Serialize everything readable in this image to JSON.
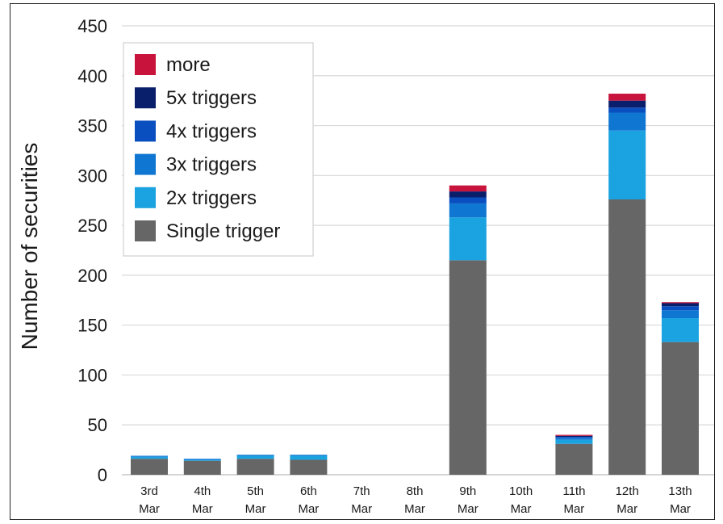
{
  "chart_data": {
    "type": "bar",
    "stacked": true,
    "title": "",
    "xlabel": "",
    "ylabel": "Number of securities",
    "ylim": [
      0,
      450
    ],
    "yticks": [
      0,
      50,
      100,
      150,
      200,
      250,
      300,
      350,
      400,
      450
    ],
    "grid": true,
    "legend_position": "top-left",
    "categories": [
      {
        "day": "3rd",
        "month": "Mar"
      },
      {
        "day": "4th",
        "month": "Mar"
      },
      {
        "day": "5th",
        "month": "Mar"
      },
      {
        "day": "6th",
        "month": "Mar"
      },
      {
        "day": "7th",
        "month": "Mar"
      },
      {
        "day": "8th",
        "month": "Mar"
      },
      {
        "day": "9th",
        "month": "Mar"
      },
      {
        "day": "10th",
        "month": "Mar"
      },
      {
        "day": "11th",
        "month": "Mar"
      },
      {
        "day": "12th",
        "month": "Mar"
      },
      {
        "day": "13th",
        "month": "Mar"
      }
    ],
    "series": [
      {
        "name": "Single trigger",
        "color": "#666666",
        "values": [
          16,
          14,
          16,
          15,
          0,
          0,
          215,
          0,
          31,
          276,
          133
        ]
      },
      {
        "name": "2x triggers",
        "color": "#1aa3e0",
        "values": [
          2,
          1,
          3,
          4,
          0,
          0,
          43,
          0,
          4,
          69,
          24
        ]
      },
      {
        "name": "3x triggers",
        "color": "#0f76d2",
        "values": [
          1,
          1,
          1,
          1,
          0,
          0,
          14,
          0,
          2,
          18,
          8
        ]
      },
      {
        "name": "4x triggers",
        "color": "#0a4fc0",
        "values": [
          0,
          0,
          0,
          0,
          0,
          0,
          6,
          0,
          1,
          5,
          4
        ]
      },
      {
        "name": "5x triggers",
        "color": "#0a1f6b",
        "values": [
          0,
          0,
          0,
          0,
          0,
          0,
          6,
          0,
          1,
          7,
          3
        ]
      },
      {
        "name": "more",
        "color": "#c8143c",
        "values": [
          0,
          0,
          0,
          0,
          0,
          0,
          6,
          0,
          1,
          7,
          1
        ]
      }
    ],
    "legend_order": [
      "more",
      "5x triggers",
      "4x triggers",
      "3x triggers",
      "2x triggers",
      "Single trigger"
    ]
  }
}
